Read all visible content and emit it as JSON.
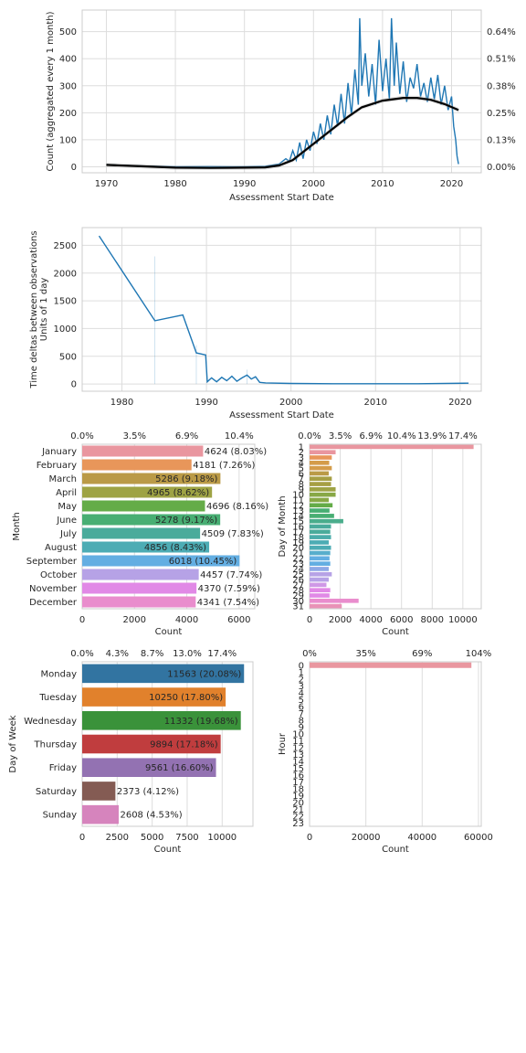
{
  "colors": {
    "line": "#1f77b4",
    "trend": "#000000",
    "grid": "#dddddd",
    "axis": "#cccccc",
    "months": [
      "#e9969f",
      "#e8965a",
      "#ba9a47",
      "#9ea344",
      "#64ac48",
      "#48ae73",
      "#4aab9b",
      "#4dacb4",
      "#63aee2",
      "#b6a2e6",
      "#e189e6",
      "#e98dcd"
    ],
    "weekdays": [
      "#3274a1",
      "#e1812c",
      "#3a923a",
      "#c03d3e",
      "#9372b2",
      "#845b53",
      "#d684bd"
    ],
    "hour0": "#e9969f"
  },
  "chart_data": [
    {
      "type": "line",
      "xlabel": "Assessment Start Date",
      "ylabel": "Count (aggregated every 1 month)",
      "xlim": [
        1966.5,
        2024.3
      ],
      "ylim": [
        -22,
        580
      ],
      "xticks": [
        "1970",
        "1980",
        "1990",
        "2000",
        "2010",
        "2020"
      ],
      "yticks": [
        "0",
        "100",
        "200",
        "300",
        "400",
        "500"
      ],
      "y2ticks": [
        "0.00%",
        "0.13%",
        "0.25%",
        "0.38%",
        "0.51%",
        "0.64%"
      ],
      "series": [
        {
          "style": "raw",
          "x": [
            1970,
            1975,
            1980,
            1985,
            1990,
            1993,
            1995,
            1996,
            1996.5,
            1997,
            1997.5,
            1998,
            1998.5,
            1999,
            1999.5,
            2000,
            2000.5,
            2001,
            2001.5,
            2002,
            2002.5,
            2003,
            2003.5,
            2004,
            2004.5,
            2005,
            2005.5,
            2006,
            2006.5,
            2006.7,
            2007,
            2007.5,
            2008,
            2008.5,
            2009,
            2009.5,
            2010,
            2010.5,
            2011,
            2011.3,
            2011.7,
            2012,
            2012.5,
            2013,
            2013.5,
            2014,
            2014.5,
            2015,
            2015.5,
            2016,
            2016.5,
            2017,
            2017.5,
            2018,
            2018.5,
            2019,
            2019.5,
            2020,
            2020.3,
            2020.6,
            2020.8,
            2021
          ],
          "y": [
            8,
            3,
            0,
            1,
            0,
            2,
            10,
            30,
            20,
            60,
            25,
            90,
            30,
            100,
            60,
            130,
            85,
            160,
            100,
            190,
            120,
            230,
            150,
            270,
            160,
            310,
            190,
            360,
            230,
            550,
            300,
            420,
            260,
            380,
            230,
            470,
            280,
            400,
            250,
            550,
            300,
            460,
            270,
            390,
            240,
            330,
            290,
            380,
            260,
            310,
            240,
            330,
            250,
            340,
            230,
            300,
            210,
            260,
            150,
            100,
            40,
            10
          ]
        },
        {
          "style": "trend",
          "x": [
            1970,
            1975,
            1980,
            1985,
            1990,
            1993,
            1995,
            1997,
            2000,
            2003,
            2005,
            2007,
            2010,
            2013,
            2015,
            2017,
            2019,
            2021
          ],
          "y": [
            7,
            2,
            -3,
            -4,
            -3,
            -2,
            5,
            25,
            85,
            145,
            185,
            220,
            245,
            255,
            255,
            248,
            232,
            210
          ]
        }
      ]
    },
    {
      "type": "line",
      "xlabel": "Assessment Start Date",
      "ylabel": "Time deltas between observations",
      "ylabel2": "Units of 1 day",
      "xlim": [
        1975.3,
        2022.5
      ],
      "ylim": [
        -130,
        2820
      ],
      "xticks": [
        "1980",
        "1990",
        "2000",
        "2010",
        "2020"
      ],
      "yticks": [
        "0",
        "500",
        "1000",
        "1500",
        "2000",
        "2500"
      ],
      "x": [
        1977.3,
        1983.9,
        1987.2,
        1988.8,
        1989.9,
        1990.1,
        1990.6,
        1991.2,
        1991.8,
        1992.4,
        1993,
        1993.6,
        1994.2,
        1994.8,
        1995.3,
        1995.8,
        1996.3,
        1997,
        2000,
        2005,
        2010,
        2015,
        2021
      ],
      "y": [
        2670,
        1140,
        1245,
        560,
        525,
        40,
        110,
        40,
        120,
        60,
        140,
        50,
        110,
        160,
        90,
        130,
        30,
        20,
        10,
        5,
        5,
        5,
        15
      ]
    },
    {
      "type": "bar",
      "orientation": "horizontal",
      "ylabel": "Month",
      "xlabel": "Count",
      "xlim": [
        0,
        6600
      ],
      "xticks": [
        "0",
        "2000",
        "4000",
        "6000"
      ],
      "top_ticks": [
        "0.0%",
        "3.5%",
        "6.9%",
        "10.4%"
      ],
      "categories": [
        "January",
        "February",
        "March",
        "April",
        "May",
        "June",
        "July",
        "August",
        "September",
        "October",
        "November",
        "December"
      ],
      "values": [
        4624,
        4181,
        5286,
        4965,
        4696,
        5278,
        4509,
        4856,
        6018,
        4457,
        4370,
        4341
      ],
      "labels": [
        "4624 (8.03%)",
        "4181 (7.26%)",
        "5286 (9.18%)",
        "4965 (8.62%)",
        "4696 (8.16%)",
        "5278 (9.17%)",
        "4509 (7.83%)",
        "4856 (8.43%)",
        "6018 (10.45%)",
        "4457 (7.74%)",
        "4370 (7.59%)",
        "4341 (7.54%)"
      ],
      "label_inside": [
        false,
        false,
        true,
        true,
        false,
        true,
        false,
        true,
        true,
        false,
        false,
        false
      ]
    },
    {
      "type": "bar",
      "orientation": "horizontal",
      "ylabel": "Day of Month",
      "xlabel": "Count",
      "xlim": [
        0,
        11200
      ],
      "xticks": [
        "0",
        "2000",
        "4000",
        "6000",
        "8000",
        "10000"
      ],
      "top_ticks": [
        "0.0%",
        "3.5%",
        "6.9%",
        "10.4%",
        "13.9%",
        "17.4%"
      ],
      "categories": [
        "1",
        "2",
        "3",
        "4",
        "5",
        "6",
        "7",
        "8",
        "9",
        "10",
        "11",
        "12",
        "13",
        "14",
        "15",
        "16",
        "17",
        "18",
        "19",
        "20",
        "21",
        "22",
        "23",
        "24",
        "25",
        "26",
        "27",
        "28",
        "29",
        "30",
        "31"
      ],
      "values": [
        10700,
        1700,
        1450,
        1280,
        1450,
        1250,
        1450,
        1400,
        1700,
        1700,
        1250,
        1500,
        1300,
        1600,
        2200,
        1400,
        1350,
        1400,
        1250,
        1400,
        1350,
        1300,
        1350,
        1250,
        1450,
        1250,
        1100,
        1350,
        1300,
        3200,
        2100
      ]
    },
    {
      "type": "bar",
      "orientation": "horizontal",
      "ylabel": "Day of Week",
      "xlabel": "Count",
      "xlim": [
        0,
        12200
      ],
      "xticks": [
        "0",
        "2500",
        "5000",
        "7500",
        "10000"
      ],
      "top_ticks": [
        "0.0%",
        "4.3%",
        "8.7%",
        "13.0%",
        "17.4%"
      ],
      "categories": [
        "Monday",
        "Tuesday",
        "Wednesday",
        "Thursday",
        "Friday",
        "Saturday",
        "Sunday"
      ],
      "values": [
        11563,
        10250,
        11332,
        9894,
        9561,
        2373,
        2608
      ],
      "labels": [
        "11563 (20.08%)",
        "10250 (17.80%)",
        "11332 (19.68%)",
        "9894 (17.18%)",
        "9561 (16.60%)",
        "2373 (4.12%)",
        "2608 (4.53%)"
      ],
      "label_inside": [
        true,
        true,
        true,
        true,
        true,
        false,
        false
      ]
    },
    {
      "type": "bar",
      "orientation": "horizontal",
      "ylabel": "Hour",
      "xlabel": "Count",
      "xlim": [
        0,
        61000
      ],
      "xticks": [
        "0",
        "20000",
        "40000",
        "60000"
      ],
      "top_ticks": [
        "0%",
        "35%",
        "69%",
        "104%"
      ],
      "categories": [
        "0",
        "1",
        "2",
        "3",
        "4",
        "5",
        "6",
        "7",
        "8",
        "9",
        "10",
        "11",
        "12",
        "13",
        "14",
        "15",
        "16",
        "17",
        "18",
        "19",
        "20",
        "21",
        "22",
        "23"
      ],
      "values": [
        57500,
        0,
        0,
        0,
        0,
        0,
        0,
        0,
        0,
        0,
        0,
        0,
        0,
        0,
        0,
        0,
        0,
        0,
        0,
        0,
        0,
        0,
        0,
        0
      ]
    }
  ]
}
